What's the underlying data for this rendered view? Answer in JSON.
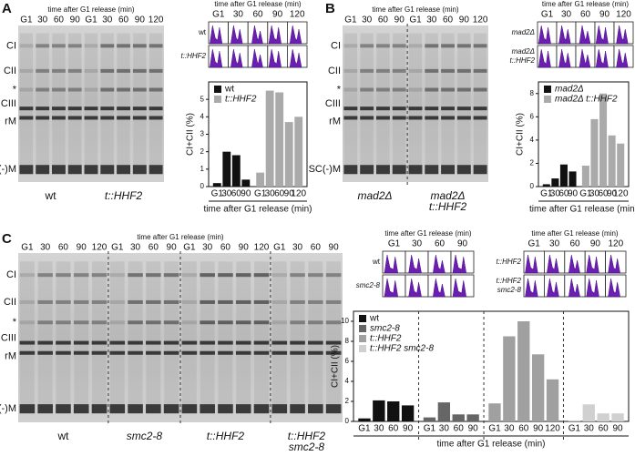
{
  "panels": [
    {
      "letter": "A",
      "gel": {
        "header": "time after G1 release (min)",
        "lanes": [
          [
            "G1",
            "30",
            "60",
            "90"
          ],
          [
            "G1",
            "30",
            "60",
            "90",
            "120"
          ]
        ],
        "rows": [
          "CI",
          "CII",
          "*",
          "CIII",
          "rM",
          "SC(-)M"
        ],
        "groups": [
          [
            "wt"
          ],
          [
            "t::HHF2"
          ]
        ]
      },
      "flow": [
        {
          "header": "time after G1 release (min)",
          "lanes": [
            "G1",
            "30",
            "60",
            "90",
            "120"
          ],
          "rows": [
            [
              "wt"
            ],
            [
              "t::HHF2"
            ]
          ]
        }
      ]
    },
    {
      "letter": "B",
      "gel": {
        "header": "time after G1 release (min)",
        "lanes": [
          [
            "G1",
            "30",
            "60",
            "90"
          ],
          [
            "G1",
            "30",
            "60",
            "90",
            "120"
          ]
        ],
        "rows": [
          "CI",
          "CII",
          "*",
          "CIII",
          "rM",
          "SC(-)M"
        ],
        "groups": [
          [
            "mad2Δ"
          ],
          [
            "mad2Δ",
            "t::HHF2"
          ]
        ]
      },
      "flow": [
        {
          "header": "time after G1 release (min)",
          "lanes": [
            "G1",
            "30",
            "60",
            "90",
            "120"
          ],
          "rows": [
            [
              "mad2Δ"
            ],
            [
              "mad2Δ",
              "t::HHF2"
            ]
          ]
        }
      ]
    },
    {
      "letter": "C",
      "gel": {
        "header": "time after G1 release (min)",
        "lanes": [
          [
            "G1",
            "30",
            "60",
            "90",
            "120"
          ],
          [
            "G1",
            "30",
            "60",
            "90"
          ],
          [
            "G1",
            "30",
            "60",
            "90",
            "120"
          ],
          [
            "G1",
            "30",
            "60",
            "90"
          ]
        ],
        "rows": [
          "CI",
          "CII",
          "*",
          "CIII",
          "rM",
          "SC(-)M"
        ],
        "groups": [
          [
            "wt"
          ],
          [
            "smc2-8"
          ],
          [
            "t::HHF2"
          ],
          [
            "t::HHF2",
            "smc2-8"
          ]
        ]
      },
      "flow": [
        {
          "header": "time after G1 release (min)",
          "lanes": [
            "G1",
            "30",
            "60",
            "90"
          ],
          "rows": [
            [
              "wt"
            ],
            [
              "smc2-8"
            ]
          ]
        },
        {
          "header": "time after G1 release (min)",
          "lanes": [
            "G1",
            "30",
            "60",
            "90",
            "120"
          ],
          "rows": [
            [
              "t::HHF2"
            ],
            [
              "t::HHF2",
              "smc2-8"
            ]
          ]
        }
      ]
    }
  ],
  "chart_data": [
    {
      "type": "bar",
      "x_label": "time after G1 release (min)",
      "y_label": "CI+CII (%)",
      "ylim": [
        0,
        6
      ],
      "yticks": [
        0,
        1,
        2,
        3,
        4,
        5
      ],
      "legend": "top-left",
      "separators": false,
      "series": [
        {
          "name": "wt",
          "color": "#111111",
          "categories": [
            "G1",
            "30",
            "60",
            "90"
          ],
          "values": [
            0.2,
            2.0,
            1.8,
            0.4
          ]
        },
        {
          "name": "t::HHF2",
          "color": "#aaaaaa",
          "categories": [
            "G1",
            "30",
            "60",
            "90",
            "120"
          ],
          "values": [
            0.8,
            5.5,
            5.4,
            3.7,
            4.0
          ]
        }
      ]
    },
    {
      "type": "bar",
      "x_label": "time after G1 release (min)",
      "y_label": "CI+CII (%)",
      "ylim": [
        0,
        9
      ],
      "yticks": [
        0,
        2,
        4,
        6,
        8
      ],
      "legend": "top-left",
      "separators": false,
      "series": [
        {
          "name": "mad2Δ",
          "color": "#111111",
          "categories": [
            "G1",
            "30",
            "60",
            "90"
          ],
          "values": [
            0.2,
            0.7,
            1.9,
            1.3
          ]
        },
        {
          "name": "mad2Δ t::HHF2",
          "color": "#aaaaaa",
          "categories": [
            "G1",
            "30",
            "60",
            "90",
            "120"
          ],
          "values": [
            1.8,
            5.8,
            8.0,
            4.4,
            3.7
          ]
        }
      ]
    },
    {
      "type": "bar",
      "x_label": "time after G1 release (min)",
      "y_label": "CI+CII (%)",
      "ylim": [
        0,
        11
      ],
      "yticks": [
        0,
        2,
        4,
        6,
        8,
        10
      ],
      "legend": "top-left",
      "separators": true,
      "series": [
        {
          "name": "wt",
          "color": "#111111",
          "categories": [
            "G1",
            "30",
            "60",
            "90"
          ],
          "values": [
            0.3,
            2.1,
            2.0,
            1.6
          ]
        },
        {
          "name": "smc2-8",
          "color": "#666666",
          "categories": [
            "G1",
            "30",
            "60",
            "90"
          ],
          "values": [
            0.4,
            1.9,
            0.7,
            0.7
          ]
        },
        {
          "name": "t::HHF2",
          "color": "#a0a0a0",
          "categories": [
            "G1",
            "30",
            "60",
            "90",
            "120"
          ],
          "values": [
            1.8,
            8.5,
            10.0,
            6.7,
            4.2
          ]
        },
        {
          "name": "t::HHF2 smc2-8",
          "color": "#d0d0d0",
          "categories": [
            "G1",
            "30",
            "60",
            "90"
          ],
          "values": [
            0.1,
            1.7,
            0.8,
            0.8
          ]
        }
      ]
    }
  ]
}
